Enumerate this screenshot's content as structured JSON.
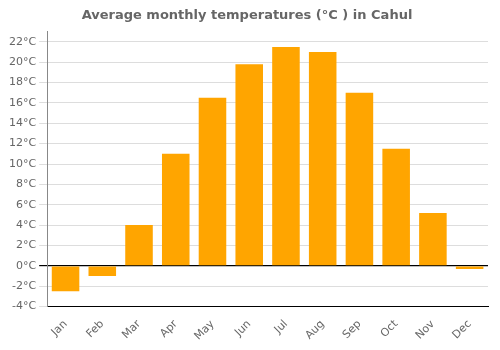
{
  "chart_data": {
    "type": "bar",
    "title": "Average monthly temperatures (°C ) in Cahul",
    "categories": [
      "Jan",
      "Feb",
      "Mar",
      "Apr",
      "May",
      "Jun",
      "Jul",
      "Aug",
      "Sep",
      "Oct",
      "Nov",
      "Dec"
    ],
    "values": [
      -2.5,
      -1.0,
      4.0,
      11.0,
      16.5,
      19.8,
      21.5,
      21.0,
      17.0,
      11.5,
      5.2,
      -0.3
    ],
    "color": "#FFA500",
    "ylim": [
      -4,
      23
    ],
    "yticks": [
      {
        "value": -4,
        "label": "-4°C"
      },
      {
        "value": -2,
        "label": "-2°C"
      },
      {
        "value": 0,
        "label": "0°C"
      },
      {
        "value": 2,
        "label": "2°C"
      },
      {
        "value": 4,
        "label": "4°C"
      },
      {
        "value": 6,
        "label": "6°C"
      },
      {
        "value": 8,
        "label": "8°C"
      },
      {
        "value": 10,
        "label": "10°C"
      },
      {
        "value": 12,
        "label": "12°C"
      },
      {
        "value": 14,
        "label": "14°C"
      },
      {
        "value": 16,
        "label": "16°C"
      },
      {
        "value": 18,
        "label": "18°C"
      },
      {
        "value": 20,
        "label": "20°C"
      },
      {
        "value": 22,
        "label": "22°C"
      }
    ],
    "grid": true
  }
}
